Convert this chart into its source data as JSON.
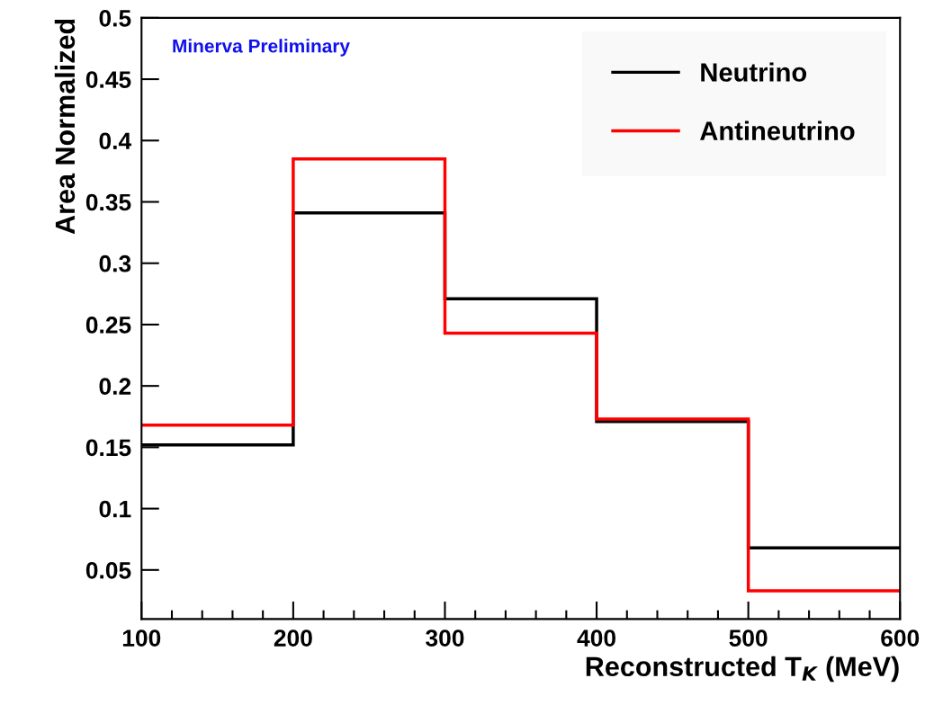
{
  "chart_data": {
    "type": "histogram",
    "xlabel": "Reconstructed T$_{K}$ (MeV)",
    "ylabel": "Area Normalized",
    "annotations": [
      "Minerva Preliminary"
    ],
    "bins": [
      100,
      200,
      300,
      400,
      500,
      600
    ],
    "series": [
      {
        "name": "Neutrino",
        "color": "#000000",
        "values": [
          0.152,
          0.341,
          0.271,
          0.171,
          0.068
        ]
      },
      {
        "name": "Antineutrino",
        "color": "#ff0000",
        "values": [
          0.168,
          0.385,
          0.243,
          0.173,
          0.033
        ]
      }
    ],
    "xlim": [
      100,
      600
    ],
    "xticks": [
      100,
      {
        "value": 120,
        "label": null
      },
      {
        "value": 140,
        "label": null
      },
      {
        "value": 160,
        "label": null
      },
      {
        "value": 180,
        "label": null
      },
      200,
      {
        "value": 220,
        "label": null
      },
      {
        "value": 240,
        "label": null
      },
      {
        "value": 260,
        "label": null
      },
      {
        "value": 280,
        "label": null
      },
      300,
      {
        "value": 320,
        "label": null
      },
      {
        "value": 340,
        "label": null
      },
      {
        "value": 360,
        "label": null
      },
      {
        "value": 380,
        "label": null
      },
      400,
      {
        "value": 420,
        "label": null
      },
      {
        "value": 440,
        "label": null
      },
      {
        "value": 460,
        "label": null
      },
      {
        "value": 480,
        "label": null
      },
      500,
      {
        "value": 520,
        "label": null
      },
      {
        "value": 540,
        "label": null
      },
      {
        "value": 560,
        "label": null
      },
      {
        "value": 580,
        "label": null
      },
      600
    ],
    "ylim": [
      0.01,
      0.5
    ],
    "yticks": [
      0.05,
      0.1,
      0.15,
      0.2,
      0.25,
      0.3,
      0.35,
      0.4,
      0.45,
      0.5
    ],
    "grid": false,
    "legend": "top right"
  }
}
